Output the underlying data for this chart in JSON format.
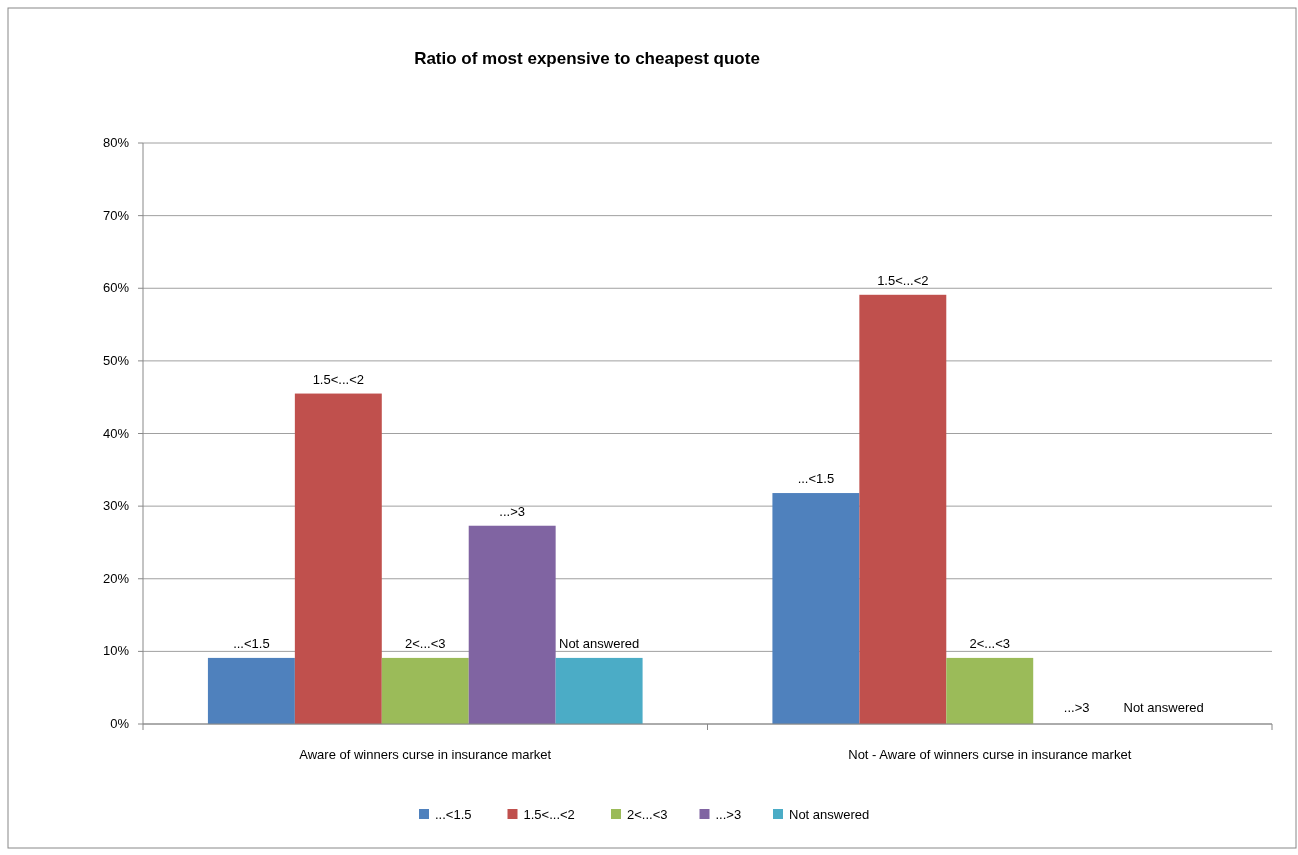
{
  "chart_data": {
    "type": "bar",
    "title": "Ratio of most expensive to cheapest quote",
    "categories": [
      "Aware of winners curse in insurance market",
      "Not - Aware of winners curse in insurance market"
    ],
    "series": [
      {
        "name": "...<1.5",
        "color": "#4f81bd",
        "values": [
          9.1,
          31.8
        ]
      },
      {
        "name": "1.5<...<2",
        "color": "#c0504d",
        "values": [
          45.5,
          59.1
        ]
      },
      {
        "name": "2<...<3",
        "color": "#9bbb59",
        "values": [
          9.1,
          9.1
        ]
      },
      {
        "name": "...>3",
        "color": "#8064a2",
        "values": [
          27.3,
          0
        ]
      },
      {
        "name": "Not answered",
        "color": "#4bacc6",
        "values": [
          9.1,
          0
        ]
      }
    ],
    "annotations": [
      "...<1.5",
      "1.5<...<2",
      "2<...<3",
      "...>3",
      "Not answered",
      "...<1.5",
      "1.5<...<2",
      "2<...<3",
      "...>3",
      "Not answered"
    ],
    "ylim": [
      0,
      80
    ],
    "yticks": [
      {
        "value": 0,
        "label": "0%"
      },
      {
        "value": 10,
        "label": "10%"
      },
      {
        "value": 20,
        "label": "20%"
      },
      {
        "value": 30,
        "label": "30%"
      },
      {
        "value": 40,
        "label": "40%"
      },
      {
        "value": 50,
        "label": "50%"
      },
      {
        "value": 60,
        "label": "60%"
      },
      {
        "value": 70,
        "label": "70%"
      },
      {
        "value": 80,
        "label": "80%"
      }
    ],
    "grid": "y",
    "legend": "bottom"
  }
}
